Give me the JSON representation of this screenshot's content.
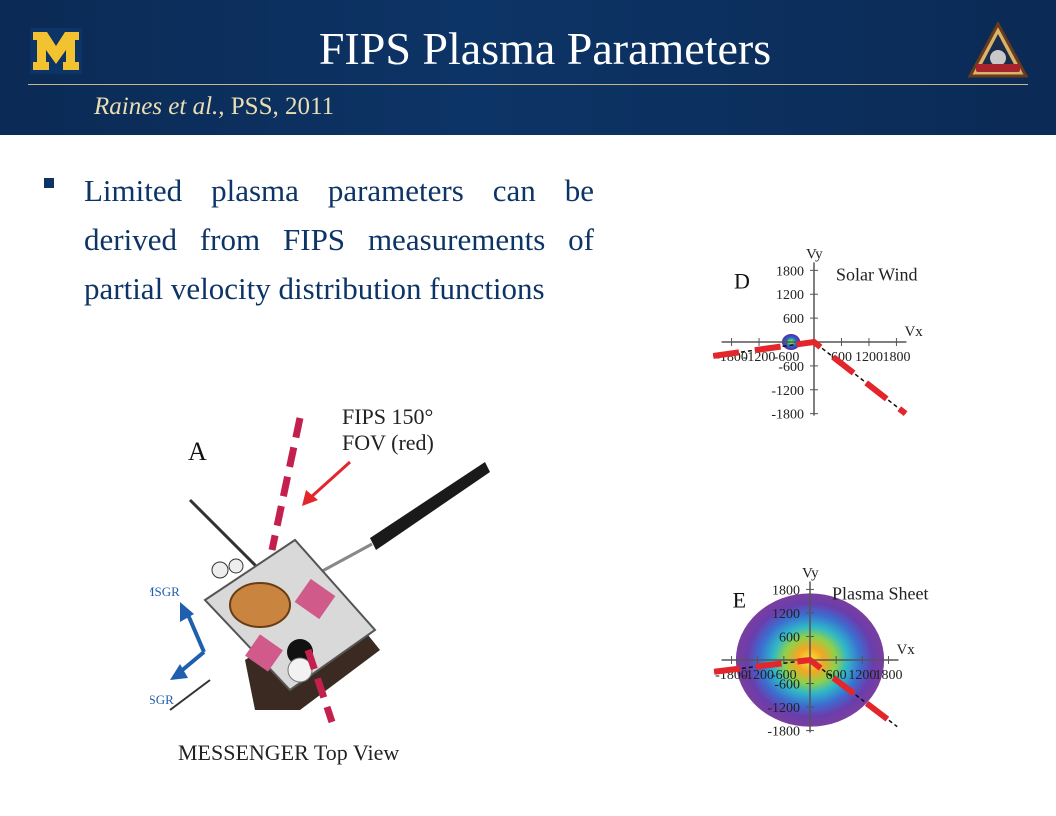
{
  "header": {
    "title": "FIPS Plasma Parameters",
    "citation_italic": "Raines et al.,",
    "citation_rest": " PSS, 2011",
    "logo_letter": "M",
    "badge_label": "MESSENGER"
  },
  "bullet": {
    "text": "Limited plasma parameters can be derived from FIPS measurements of partial velocity distribution functions"
  },
  "spacecraft_figure": {
    "panel_letter": "A",
    "fov_label_line1": "FIPS 150°",
    "fov_label_line2": "FOV (red)",
    "y_axis_label": "Y",
    "y_axis_sub": "MSGR",
    "x_axis_label": "X",
    "x_axis_sub": "MSGR",
    "caption": "MESSENGER Top View"
  },
  "chart_data": [
    {
      "type": "heatmap",
      "panel_letter": "D",
      "title": "Solar Wind",
      "xlabel": "Vx",
      "ylabel": "Vy",
      "xlim": [
        -1800,
        1800
      ],
      "ylim": [
        -1800,
        1800
      ],
      "x_ticks": [
        "-1800",
        "-1200",
        "-600",
        "600",
        "1200",
        "1800"
      ],
      "y_ticks": [
        "1800",
        "1200",
        "600",
        "-600",
        "-1200",
        "-1800"
      ],
      "distribution_center": [
        -500,
        0
      ],
      "distribution_radius": 200,
      "fov_boundary": [
        [
          -2200,
          -350
        ],
        [
          0,
          0
        ],
        [
          2000,
          -1800
        ]
      ]
    },
    {
      "type": "heatmap",
      "panel_letter": "E",
      "title": "Plasma Sheet",
      "xlabel": "Vx",
      "ylabel": "Vy",
      "xlim": [
        -1800,
        1800
      ],
      "ylim": [
        -1800,
        1800
      ],
      "x_ticks": [
        "-1800",
        "-1200",
        "-600",
        "600",
        "1200",
        "1800"
      ],
      "y_ticks": [
        "1800",
        "1200",
        "600",
        "-600",
        "-1200",
        "-1800"
      ],
      "distribution_center": [
        0,
        0
      ],
      "distribution_radius": 1700,
      "fov_boundary": [
        [
          -2200,
          -300
        ],
        [
          0,
          0
        ],
        [
          2000,
          -1700
        ]
      ]
    }
  ],
  "colors": {
    "header_bg": "#0d3466",
    "maize": "#f2c230",
    "bullet_text": "#0d3466",
    "fov_red": "#e3262b"
  }
}
